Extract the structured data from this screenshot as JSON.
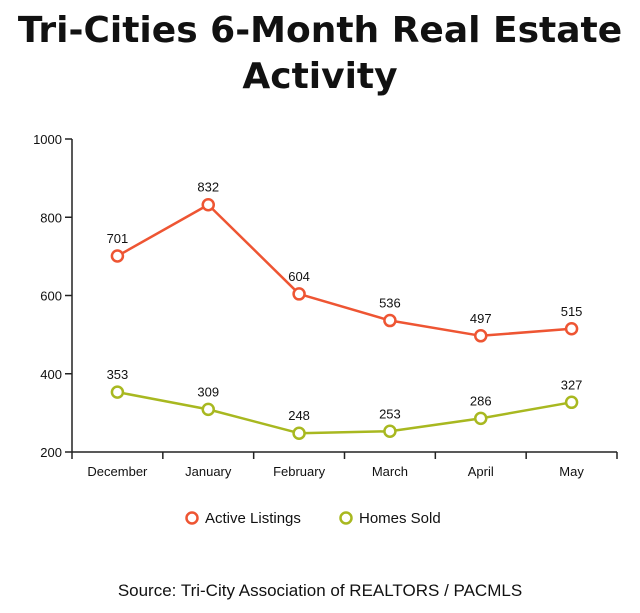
{
  "header": {
    "title_line1": "Tri-Cities 6-Month Real Estate",
    "title_line2": "Activity"
  },
  "footer": {
    "source": "Source: Tri-City Association of REALTORS / PACMLS"
  },
  "colors": {
    "active_listings": "#ee5533",
    "homes_sold": "#a8b820",
    "axis": "#222222",
    "grid_tick": "#222222"
  },
  "chart_data": {
    "type": "line",
    "title": "Tri-Cities 6-Month Real Estate Activity",
    "xlabel": "",
    "ylabel": "",
    "categories": [
      "December",
      "January",
      "February",
      "March",
      "April",
      "May"
    ],
    "ylim": [
      200,
      1000
    ],
    "yticks": [
      "200",
      "400",
      "600",
      "800",
      "1000"
    ],
    "grid": false,
    "legend_position": "bottom",
    "series": [
      {
        "name": "Active Listings",
        "color": "#ee5533",
        "values": [
          701,
          832,
          604,
          536,
          497,
          515
        ]
      },
      {
        "name": "Homes Sold",
        "color": "#a8b820",
        "values": [
          353,
          309,
          248,
          253,
          286,
          327
        ]
      }
    ]
  }
}
